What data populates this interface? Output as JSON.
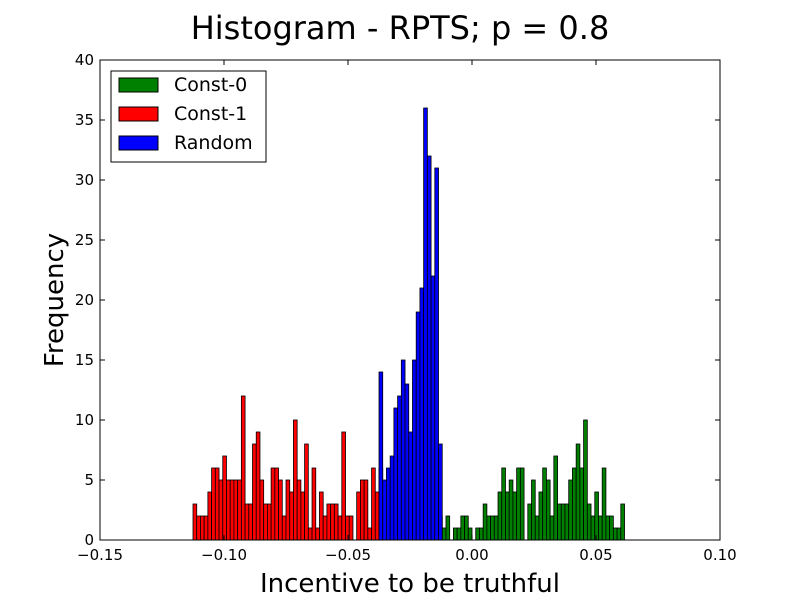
{
  "chart_data": {
    "type": "bar",
    "title": "Histogram - RPTS;  p = 0.8",
    "xlabel": "Incentive to be truthful",
    "ylabel": "Frequency",
    "xlim": [
      -0.15,
      0.1
    ],
    "ylim": [
      0,
      40
    ],
    "xticks": [
      "−0.15",
      "−0.10",
      "−0.05",
      "0.00",
      "0.05",
      "0.10"
    ],
    "xtick_values": [
      -0.15,
      -0.1,
      -0.05,
      0.0,
      0.05,
      0.1
    ],
    "yticks": [
      "0",
      "5",
      "10",
      "15",
      "20",
      "25",
      "30",
      "35",
      "40"
    ],
    "ytick_values": [
      0,
      5,
      10,
      15,
      20,
      25,
      30,
      35,
      40
    ],
    "grid": false,
    "legend_position": "top-left",
    "series": [
      {
        "name": "Const-0",
        "color": "#008000",
        "bin_start": -0.015,
        "bin_width": 0.0015,
        "values": [
          1,
          2,
          1,
          2,
          0,
          1,
          1,
          2,
          2,
          1,
          0,
          1,
          1,
          3,
          2,
          2,
          2,
          4,
          6,
          4,
          5,
          4,
          6,
          6,
          0,
          3,
          5,
          2,
          4,
          6,
          5,
          2,
          7,
          3,
          3,
          3,
          5,
          6,
          8,
          6,
          10,
          3,
          2,
          4,
          2,
          6,
          2,
          2,
          1,
          1,
          3
        ]
      },
      {
        "name": "Const-1",
        "color": "#ff0000",
        "bin_start": -0.1125,
        "bin_width": 0.0015,
        "values": [
          3,
          2,
          2,
          2,
          4,
          6,
          6,
          5,
          7,
          5,
          5,
          5,
          5,
          12,
          3,
          3,
          8,
          9,
          5,
          3,
          3,
          6,
          6,
          5,
          2,
          5,
          4,
          10,
          5,
          4,
          8,
          1,
          6,
          1,
          4,
          2,
          3,
          3,
          3,
          2,
          9,
          2,
          2,
          0,
          4,
          5,
          5,
          1,
          6,
          4,
          6,
          2
        ]
      },
      {
        "name": "Random",
        "color": "#0000ff",
        "bin_start": -0.0375,
        "bin_width": 0.0015,
        "values": [
          14,
          5,
          6,
          7,
          11,
          12,
          15,
          13,
          9,
          15,
          19,
          21,
          36,
          32,
          22,
          31,
          8
        ]
      }
    ]
  }
}
